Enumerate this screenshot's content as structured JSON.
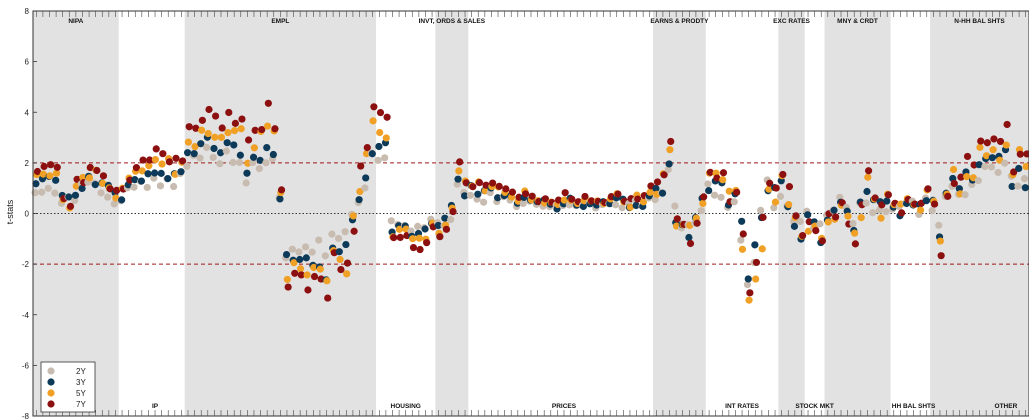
{
  "chart_data": {
    "type": "scatter",
    "ylabel": "t-stats",
    "ylim": [
      -8,
      8
    ],
    "yticks": [
      -8,
      -6,
      -4,
      -2,
      0,
      2,
      4,
      6,
      8
    ],
    "x_count": 151,
    "reference_lines": [
      {
        "y": 2,
        "style": "dashed",
        "color": "#a01a1a"
      },
      {
        "y": -2,
        "style": "dashed",
        "color": "#a01a1a"
      },
      {
        "y": 0,
        "style": "dotted",
        "color": "#333333"
      }
    ],
    "series": [
      {
        "name": "2Y",
        "color": "#c8bcb0"
      },
      {
        "name": "3Y",
        "color": "#0d3a58"
      },
      {
        "name": "5Y",
        "color": "#f0a025"
      },
      {
        "name": "7Y",
        "color": "#8c1010"
      }
    ],
    "legend_position": "bottom-left",
    "groups_top": [
      {
        "label": "NIPA",
        "start": 0,
        "end": 13,
        "shaded": true
      },
      {
        "label": "EMPL",
        "start": 23,
        "end": 52,
        "shaded": true
      },
      {
        "label": "INVT, ORDS & SALES",
        "start": 61,
        "end": 66,
        "shaded": true
      },
      {
        "label": "EARNS & PRODTY",
        "start": 94,
        "end": 102,
        "shaded": true
      },
      {
        "label": "EXC RATES",
        "start": 113,
        "end": 117,
        "shaded": true
      },
      {
        "label": "MNY & CRDT",
        "start": 120,
        "end": 130,
        "shaded": true
      },
      {
        "label": "N-HH BAL SHTS",
        "start": 136,
        "end": 151,
        "shaded": true
      }
    ],
    "groups_bottom": [
      {
        "label": "IP",
        "pos": 18
      },
      {
        "label": "HOUSING",
        "pos": 56
      },
      {
        "label": "PRICES",
        "pos": 80
      },
      {
        "label": "INT RATES",
        "pos": 107
      },
      {
        "label": "STOCK MKT",
        "pos": 118
      },
      {
        "label": "HH BAL SHTS",
        "pos": 133
      },
      {
        "label": "OTHER",
        "pos": 147
      }
    ],
    "profile": [
      [
        0,
        1.3,
        0.4
      ],
      [
        3,
        1.6,
        0.5
      ],
      [
        5,
        0.5,
        1.2
      ],
      [
        8,
        1.6,
        0.7
      ],
      [
        10,
        1.2,
        0.6
      ],
      [
        13,
        1.0,
        0.6
      ],
      [
        15,
        1.6,
        0.4
      ],
      [
        18,
        1.9,
        0.4
      ],
      [
        21,
        1.9,
        0.7
      ],
      [
        23,
        2.8,
        0.9
      ],
      [
        27,
        3.5,
        0.9
      ],
      [
        30,
        3.0,
        0.9
      ],
      [
        34,
        2.5,
        0.9
      ],
      [
        36,
        3.3,
        0.9
      ],
      [
        38,
        -2.0,
        0.9
      ],
      [
        44,
        -2.7,
        0.8
      ],
      [
        47,
        -1.2,
        1.3
      ],
      [
        50,
        1.5,
        1.3
      ],
      [
        51,
        3.0,
        1.3
      ],
      [
        53,
        3.6,
        1.0
      ],
      [
        54,
        -0.8,
        0.5
      ],
      [
        57,
        -0.9,
        0.5
      ],
      [
        61,
        -0.7,
        0.5
      ],
      [
        64,
        1.0,
        0.8
      ],
      [
        67,
        1.0,
        0.4
      ],
      [
        75,
        0.6,
        0.3
      ],
      [
        85,
        0.4,
        0.3
      ],
      [
        90,
        0.6,
        0.4
      ],
      [
        94,
        0.8,
        0.7
      ],
      [
        96,
        2.2,
        0.6
      ],
      [
        97,
        0.4,
        0.9
      ],
      [
        99,
        -1.0,
        0.8
      ],
      [
        102,
        1.5,
        0.7
      ],
      [
        106,
        1.0,
        1.0
      ],
      [
        108,
        -4.0,
        2.0
      ],
      [
        111,
        0.5,
        1.6
      ],
      [
        113,
        1.8,
        1.2
      ],
      [
        115,
        -0.5,
        0.8
      ],
      [
        117,
        -1.0,
        1.0
      ],
      [
        120,
        -0.5,
        0.6
      ],
      [
        122,
        0.2,
        0.9
      ],
      [
        124,
        -1.3,
        0.9
      ],
      [
        126,
        1.0,
        1.2
      ],
      [
        129,
        0.2,
        0.7
      ],
      [
        133,
        0.2,
        0.5
      ],
      [
        135,
        0.9,
        0.7
      ],
      [
        137,
        -0.8,
        1.0
      ],
      [
        140,
        1.8,
        1.0
      ],
      [
        144,
        2.6,
        1.0
      ],
      [
        147,
        2.6,
        0.8
      ],
      [
        151,
        1.2,
        1.3
      ]
    ]
  }
}
